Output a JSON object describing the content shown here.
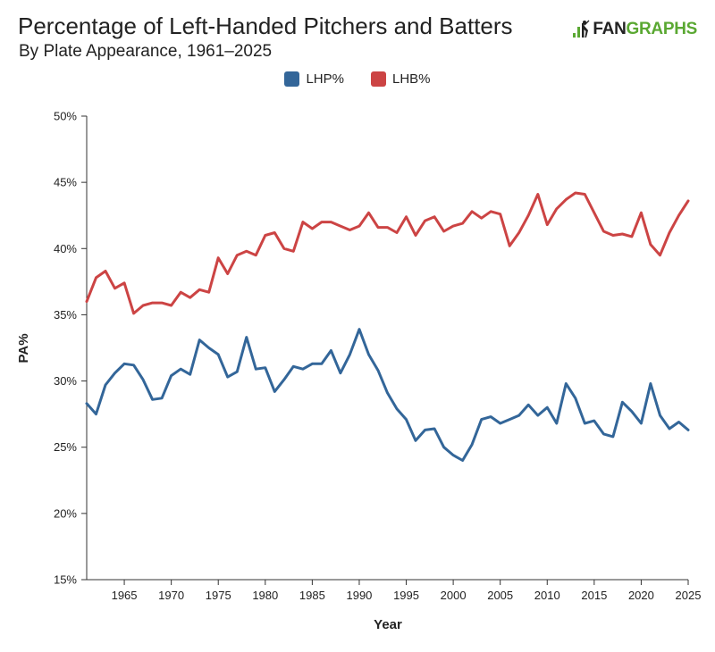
{
  "header": {
    "title": "Percentage of Left-Handed Pitchers and Batters",
    "subtitle": "By Plate Appearance, 1961–2025",
    "logo_prefix": "FAN",
    "logo_suffix": "GRAPHS"
  },
  "colors": {
    "lhp": "#336699",
    "lhb": "#cc4444",
    "logo_green": "#5aa832"
  },
  "chart_data": {
    "type": "line",
    "title": "Percentage of Left-Handed Pitchers and Batters",
    "subtitle": "By Plate Appearance, 1961–2025",
    "xlabel": "Year",
    "ylabel": "PA%",
    "xlim": [
      1961,
      2025
    ],
    "ylim": [
      15,
      50
    ],
    "xticks": [
      1965,
      1970,
      1975,
      1980,
      1985,
      1990,
      1995,
      2000,
      2005,
      2010,
      2015,
      2020,
      2025
    ],
    "yticks": [
      15,
      20,
      25,
      30,
      35,
      40,
      45,
      50
    ],
    "ytick_labels": [
      "15%",
      "20%",
      "25%",
      "30%",
      "35%",
      "40%",
      "45%",
      "50%"
    ],
    "legend_position": "top-center",
    "grid": false,
    "x": [
      1961,
      1962,
      1963,
      1964,
      1965,
      1966,
      1967,
      1968,
      1969,
      1970,
      1971,
      1972,
      1973,
      1974,
      1975,
      1976,
      1977,
      1978,
      1979,
      1980,
      1981,
      1982,
      1983,
      1984,
      1985,
      1986,
      1987,
      1988,
      1989,
      1990,
      1991,
      1992,
      1993,
      1994,
      1995,
      1996,
      1997,
      1998,
      1999,
      2000,
      2001,
      2002,
      2003,
      2004,
      2005,
      2006,
      2007,
      2008,
      2009,
      2010,
      2011,
      2012,
      2013,
      2014,
      2015,
      2016,
      2017,
      2018,
      2019,
      2020,
      2021,
      2022,
      2023,
      2024,
      2025
    ],
    "series": [
      {
        "name": "LHP%",
        "color": "#336699",
        "values": [
          28.3,
          27.5,
          29.7,
          30.6,
          31.3,
          31.2,
          30.1,
          28.6,
          28.7,
          30.4,
          30.9,
          30.5,
          33.1,
          32.5,
          32.0,
          30.3,
          30.7,
          33.3,
          30.9,
          31.0,
          29.2,
          30.1,
          31.1,
          30.9,
          31.3,
          31.3,
          32.3,
          30.6,
          32.0,
          33.9,
          32.0,
          30.8,
          29.1,
          27.9,
          27.1,
          25.5,
          26.3,
          26.4,
          25.0,
          24.4,
          24.0,
          25.2,
          27.1,
          27.3,
          26.8,
          27.1,
          27.4,
          28.2,
          27.4,
          28.0,
          26.8,
          29.8,
          28.7,
          26.8,
          27.0,
          26.0,
          25.8,
          28.4,
          27.7,
          26.8,
          29.8,
          27.4,
          26.4,
          26.9,
          26.3
        ]
      },
      {
        "name": "LHB%",
        "color": "#cc4444",
        "values": [
          36.0,
          37.8,
          38.3,
          37.0,
          37.4,
          35.1,
          35.7,
          35.9,
          35.9,
          35.7,
          36.7,
          36.3,
          36.9,
          36.7,
          39.3,
          38.1,
          39.5,
          39.8,
          39.5,
          41.0,
          41.2,
          40.0,
          39.8,
          42.0,
          41.5,
          42.0,
          42.0,
          41.7,
          41.4,
          41.7,
          42.7,
          41.6,
          41.6,
          41.2,
          42.4,
          41.0,
          42.1,
          42.4,
          41.3,
          41.7,
          41.9,
          42.8,
          42.3,
          42.8,
          42.6,
          40.2,
          41.2,
          42.5,
          44.1,
          41.8,
          43.0,
          43.7,
          44.2,
          44.1,
          42.7,
          41.3,
          41.0,
          41.1,
          40.9,
          42.7,
          40.3,
          39.5,
          41.2,
          42.5,
          43.6
        ]
      }
    ]
  }
}
